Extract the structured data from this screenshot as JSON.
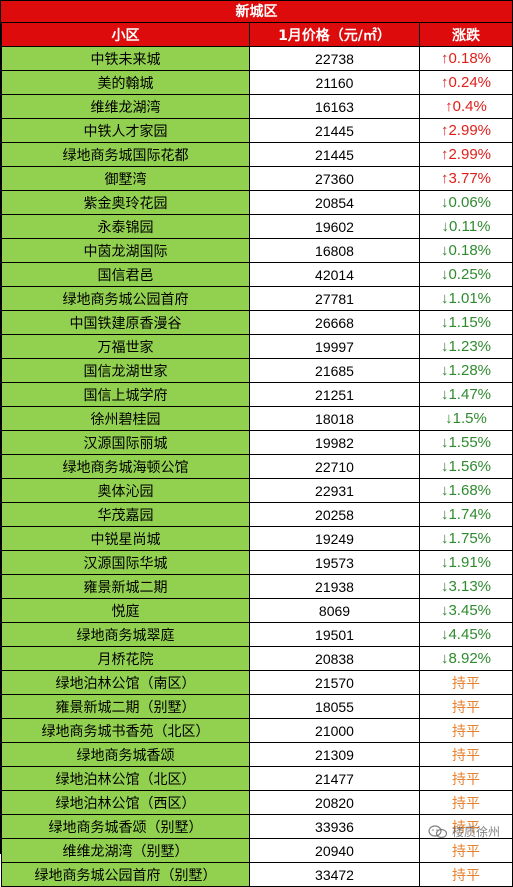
{
  "title": "新城区",
  "headers": {
    "name": "小区",
    "price": "1月价格（元/㎡）",
    "change": "涨跌"
  },
  "colors": {
    "header_bg": "#dd0b0b",
    "name_bg": "#92d050",
    "up": "#e0201b",
    "down": "#2f8a2f",
    "flat": "#e8802c"
  },
  "rows": [
    {
      "name": "中铁未来城",
      "price": "22738",
      "change": "↑0.18%",
      "trend": "up"
    },
    {
      "name": "美的翰城",
      "price": "21160",
      "change": "↑0.24%",
      "trend": "up"
    },
    {
      "name": "维维龙湖湾",
      "price": "16163",
      "change": "↑0.4%",
      "trend": "up"
    },
    {
      "name": "中铁人才家园",
      "price": "21445",
      "change": "↑2.99%",
      "trend": "up"
    },
    {
      "name": "绿地商务城国际花都",
      "price": "21445",
      "change": "↑2.99%",
      "trend": "up"
    },
    {
      "name": "御墅湾",
      "price": "27360",
      "change": "↑3.77%",
      "trend": "up"
    },
    {
      "name": "紫金奥玲花园",
      "price": "20854",
      "change": "↓0.06%",
      "trend": "down"
    },
    {
      "name": "永泰锦园",
      "price": "19602",
      "change": "↓0.11%",
      "trend": "down"
    },
    {
      "name": "中茵龙湖国际",
      "price": "16808",
      "change": "↓0.18%",
      "trend": "down"
    },
    {
      "name": "国信君邑",
      "price": "42014",
      "change": "↓0.25%",
      "trend": "down"
    },
    {
      "name": "绿地商务城公园首府",
      "price": "27781",
      "change": "↓1.01%",
      "trend": "down"
    },
    {
      "name": "中国铁建原香漫谷",
      "price": "26668",
      "change": "↓1.15%",
      "trend": "down"
    },
    {
      "name": "万福世家",
      "price": "19997",
      "change": "↓1.23%",
      "trend": "down"
    },
    {
      "name": "国信龙湖世家",
      "price": "21685",
      "change": "↓1.28%",
      "trend": "down"
    },
    {
      "name": "国信上城学府",
      "price": "21251",
      "change": "↓1.47%",
      "trend": "down"
    },
    {
      "name": "徐州碧桂园",
      "price": "18018",
      "change": "↓1.5%",
      "trend": "down"
    },
    {
      "name": "汉源国际丽城",
      "price": "19982",
      "change": "↓1.55%",
      "trend": "down"
    },
    {
      "name": "绿地商务城海顿公馆",
      "price": "22710",
      "change": "↓1.56%",
      "trend": "down"
    },
    {
      "name": "奥体沁园",
      "price": "22931",
      "change": "↓1.68%",
      "trend": "down"
    },
    {
      "name": "华茂嘉园",
      "price": "20258",
      "change": "↓1.74%",
      "trend": "down"
    },
    {
      "name": "中锐星尚城",
      "price": "19249",
      "change": "↓1.75%",
      "trend": "down"
    },
    {
      "name": "汉源国际华城",
      "price": "19573",
      "change": "↓1.91%",
      "trend": "down"
    },
    {
      "name": "雍景新城二期",
      "price": "21938",
      "change": "↓3.13%",
      "trend": "down"
    },
    {
      "name": "悦庭",
      "price": "8069",
      "change": "↓3.45%",
      "trend": "down"
    },
    {
      "name": "绿地商务城翠庭",
      "price": "19501",
      "change": "↓4.45%",
      "trend": "down"
    },
    {
      "name": "月桥花院",
      "price": "20838",
      "change": "↓8.92%",
      "trend": "down"
    },
    {
      "name": "绿地泊林公馆（南区）",
      "price": "21570",
      "change": "持平",
      "trend": "flat"
    },
    {
      "name": "雍景新城二期（别墅）",
      "price": "18055",
      "change": "持平",
      "trend": "flat"
    },
    {
      "name": "绿地商务城书香苑（北区）",
      "price": "21000",
      "change": "持平",
      "trend": "flat"
    },
    {
      "name": "绿地商务城香颂",
      "price": "21309",
      "change": "持平",
      "trend": "flat"
    },
    {
      "name": "绿地泊林公馆（北区）",
      "price": "21477",
      "change": "持平",
      "trend": "flat"
    },
    {
      "name": "绿地泊林公馆（西区）",
      "price": "20820",
      "change": "持平",
      "trend": "flat"
    },
    {
      "name": "绿地商务城香颂（别墅）",
      "price": "33936",
      "change": "持平",
      "trend": "flat"
    },
    {
      "name": "维维龙湖湾（别墅）",
      "price": "20940",
      "change": "持平",
      "trend": "flat"
    },
    {
      "name": "绿地商务城公园首府（别墅）",
      "price": "33472",
      "change": "持平",
      "trend": "flat"
    }
  ],
  "watermark": {
    "text": "楼质徐州",
    "icon": "wechat-icon"
  }
}
